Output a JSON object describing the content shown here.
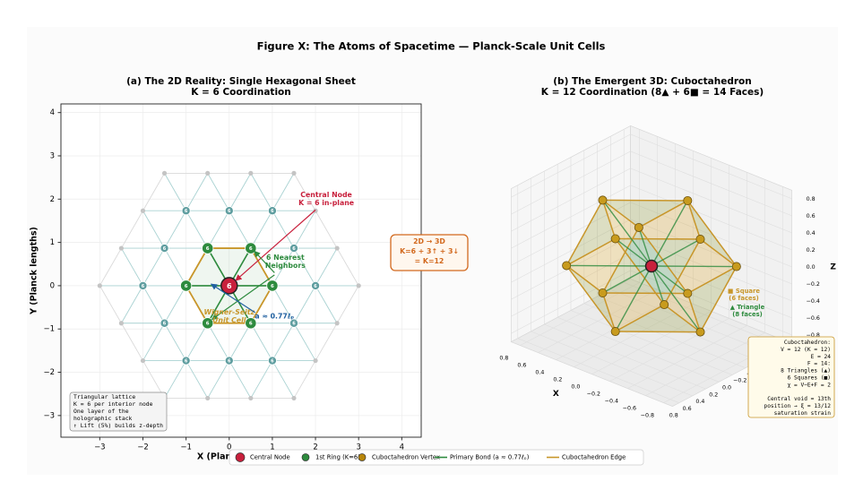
{
  "title": "Figure X:  The Atoms of Spacetime — Planck-Scale Unit Cells",
  "bridge": [
    "2D → 3D",
    "K=6 + 3↑ + 3↓",
    "= K=12"
  ],
  "bridge_color": "#d2691e",
  "legend": [
    {
      "label": "Central Node",
      "color": "#c8203c",
      "marker": "circle"
    },
    {
      "label": "1st Ring (K=6)",
      "color": "#2e8b3e",
      "marker": "circle"
    },
    {
      "label": "Cuboctahedron Vertex",
      "color": "#b8860b",
      "marker": "circle"
    },
    {
      "label": "Primary Bond (a ≈ 0.77ℓₚ)",
      "color": "#2e8b3e",
      "marker": "line"
    },
    {
      "label": "Cuboctahedron Edge",
      "color": "#c8962a",
      "marker": "line"
    }
  ],
  "chart_data": [
    {
      "type": "scatter",
      "title": "(a)  The 2D Reality:  Single Hexagonal Sheet",
      "subtitle": "K = 6 Coordination",
      "xlabel": "X  (Planck lengths)",
      "ylabel": "Y  (Planck lengths)",
      "xlim": [
        -3.9,
        4.45
      ],
      "ylim": [
        -3.5,
        4.2
      ],
      "xticks": [
        {
          "value": -3,
          "label": "−3"
        },
        {
          "value": -2,
          "label": "−2"
        },
        {
          "value": -1,
          "label": "−1"
        },
        0,
        1,
        2,
        3,
        4
      ],
      "yticks": [
        {
          "value": -3,
          "label": "−3"
        },
        {
          "value": -2,
          "label": "−2"
        },
        {
          "value": -1,
          "label": "−1"
        },
        0,
        1,
        2,
        3,
        4
      ],
      "grid": true,
      "node_label": "6",
      "series": [
        {
          "color": "#c4c4c4",
          "x": [
            -1.5,
            -0.5,
            0.5,
            1.5,
            -1.5,
            -0.5,
            0.5,
            1.5,
            -2,
            2,
            -2,
            2,
            -2.5,
            2.5,
            -2.5,
            2.5,
            -3,
            3
          ],
          "y": [
            2.598,
            2.598,
            2.598,
            2.598,
            -2.598,
            -2.598,
            -2.598,
            -2.598,
            1.732,
            1.732,
            -1.732,
            -1.732,
            0.866,
            0.866,
            -0.866,
            -0.866,
            0,
            0
          ]
        },
        {
          "color": "#5f9ea0",
          "x": [
            2,
            -2,
            1.5,
            -1.5,
            1.5,
            -1.5,
            1,
            0,
            -1,
            1,
            0,
            -1
          ],
          "y": [
            0,
            0,
            0.866,
            0.866,
            -0.866,
            -0.866,
            1.732,
            1.732,
            1.732,
            -1.732,
            -1.732,
            -1.732
          ]
        },
        {
          "color": "#2e8b3e",
          "x": [
            1,
            0.5,
            -0.5,
            -1,
            -0.5,
            0.5
          ],
          "y": [
            0,
            0.866,
            0.866,
            0,
            -0.866,
            -0.866
          ]
        },
        {
          "color": "#c8203c",
          "x": [
            0
          ],
          "y": [
            0
          ]
        }
      ],
      "annotations": [
        {
          "text": [
            "Central Node",
            "K = 6 in-plane"
          ],
          "color": "#c8203c"
        },
        {
          "text": [
            "6 Nearest",
            "Neighbors"
          ],
          "color": "#2e8b3e"
        },
        {
          "text": [
            "Wigner-Seitz",
            "Unit Cell"
          ],
          "color": "#c8962a"
        },
        {
          "text": [
            "a ≈ 0.77ℓₚ"
          ],
          "color": "#2060a0"
        }
      ],
      "note": [
        "Triangular lattice",
        "K = 6 per interior node",
        "One layer of the",
        "holographic stack",
        "↑ Lift (5%) builds z-depth"
      ]
    },
    {
      "type": "scatter3d",
      "title": "(b)  The Emergent 3D:  Cuboctahedron",
      "subtitle": "K = 12 Coordination  (8▲ + 6■ = 14 Faces)",
      "xlabel": "X",
      "ylabel": "Y",
      "zlabel": "Z",
      "xlim": [
        -0.9,
        0.9
      ],
      "ylim": [
        -0.9,
        0.9
      ],
      "zlim": [
        -0.9,
        0.9
      ],
      "xticks": [
        {
          "value": -0.8,
          "label": "−0.8"
        },
        {
          "value": -0.6,
          "label": "−0.6"
        },
        {
          "value": -0.4,
          "label": "−0.4"
        },
        {
          "value": -0.2,
          "label": "−0.2"
        },
        {
          "value": 0,
          "label": "0.0"
        },
        0.2,
        0.4,
        0.6,
        0.8
      ],
      "yticks": [
        {
          "value": -0.8,
          "label": "−0.8"
        },
        {
          "value": -0.6,
          "label": "−0.6"
        },
        {
          "value": -0.4,
          "label": "−0.4"
        },
        {
          "value": -0.2,
          "label": "−0.2"
        },
        {
          "value": 0,
          "label": "0.0"
        },
        0.2,
        0.4,
        0.6,
        0.8
      ],
      "zticks": [
        {
          "value": -0.8,
          "label": "−0.8"
        },
        {
          "value": -0.6,
          "label": "−0.6"
        },
        {
          "value": -0.4,
          "label": "−0.4"
        },
        {
          "value": -0.2,
          "label": "−0.2"
        },
        {
          "value": 0,
          "label": "0.0"
        },
        0.2,
        0.4,
        0.6,
        0.8
      ],
      "grid": true,
      "series": [
        {
          "color": "#c89b1e",
          "x": [
            0.545,
            0.545,
            -0.545,
            -0.545,
            0.545,
            0.545,
            -0.545,
            -0.545,
            0,
            0,
            0,
            0
          ],
          "y": [
            0.545,
            -0.545,
            0.545,
            -0.545,
            0,
            0,
            0,
            0,
            0.545,
            0.545,
            -0.545,
            -0.545
          ],
          "z": [
            0,
            0,
            0,
            0,
            0.545,
            -0.545,
            0.545,
            -0.545,
            0.545,
            -0.545,
            0.545,
            -0.545
          ]
        },
        {
          "color": "#c8203c",
          "x": [
            0
          ],
          "y": [
            0
          ],
          "z": [
            0
          ]
        }
      ],
      "annotations": [
        {
          "text": [
            "■ Square",
            "(6 faces)"
          ],
          "color": "#c8962a"
        },
        {
          "text": [
            "▲ Triangle",
            "(8 faces)"
          ],
          "color": "#2e8b3e"
        }
      ],
      "info": [
        "Cuboctahedron:",
        "V = 12  (K = 12)",
        "E = 24",
        "F = 14:",
        "8 Triangles (▲)",
        "6 Squares  (■)",
        "χ = V−E+F = 2"
      ],
      "info_note": [
        "Central void = 13th",
        "position → ξ = 13/12",
        "saturation strain"
      ]
    }
  ]
}
